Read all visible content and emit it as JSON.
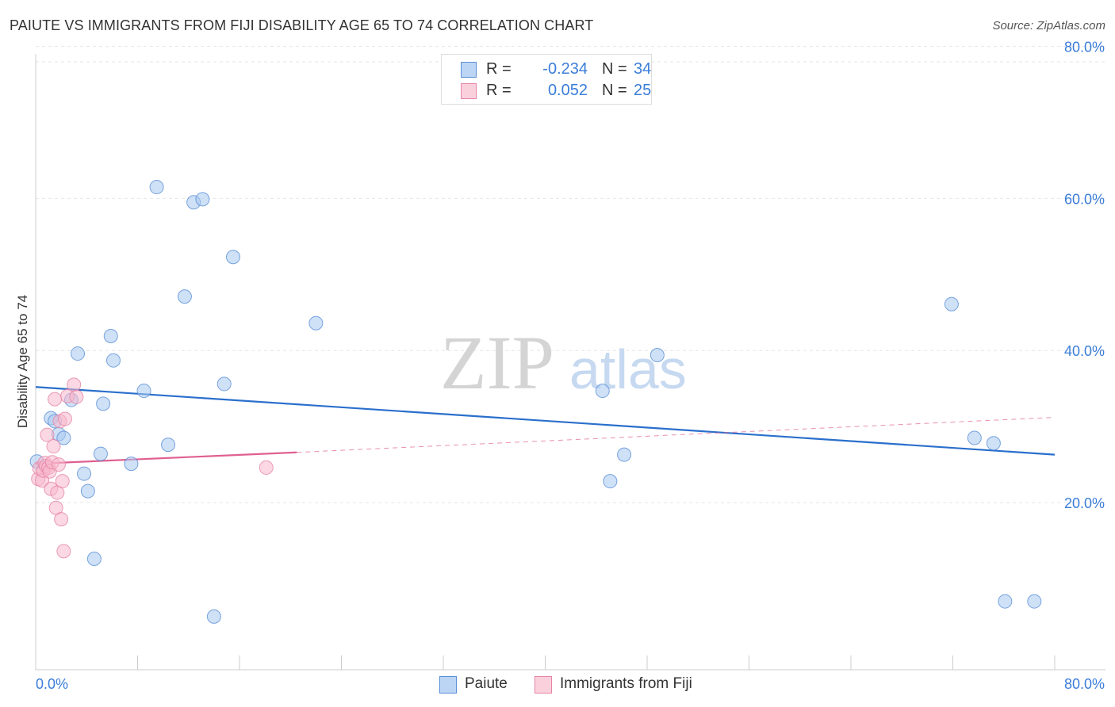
{
  "header": {
    "title": "PAIUTE VS IMMIGRANTS FROM FIJI DISABILITY AGE 65 TO 74 CORRELATION CHART",
    "source": "Source: ZipAtlas.com"
  },
  "legend": {
    "rows": [
      {
        "r_label": "R =",
        "r_value": "-0.234",
        "n_label": "N =",
        "n_value": "34"
      },
      {
        "r_label": "R =",
        "r_value": "0.052",
        "n_label": "N =",
        "n_value": "25"
      }
    ]
  },
  "bottom_legend": {
    "paiute": "Paiute",
    "fiji": "Immigrants from Fiji"
  },
  "watermark": {
    "zip": "ZIP",
    "atlas": "atlas"
  },
  "colors": {
    "paiute_fill": "#a8c8f0",
    "paiute_stroke": "#5a8fd6",
    "paiute_line": "#2a6fcc",
    "fiji_fill": "#f7b8cc",
    "fiji_stroke": "#e585a6",
    "fiji_line": "#e06090",
    "axis_text": "#3b7dd8"
  },
  "chart_data": {
    "type": "scatter",
    "title": "PAIUTE VS IMMIGRANTS FROM FIJI DISABILITY AGE 65 TO 74 CORRELATION CHART",
    "xlabel": "",
    "ylabel": "Disability Age 65 to 74",
    "xlim": [
      0,
      80
    ],
    "ylim": [
      0,
      80
    ],
    "x_tick_labels": [
      "0.0%",
      "80.0%"
    ],
    "y_tick_labels": [
      "20.0%",
      "40.0%",
      "60.0%",
      "80.0%"
    ],
    "y_ticks": [
      20,
      40,
      60,
      80
    ],
    "grid": true,
    "series": [
      {
        "name": "Paiute",
        "r": -0.234,
        "n": 34,
        "trend": {
          "x1": 0,
          "y1": 35.2,
          "x2": 80,
          "y2": 26.3,
          "dashed_to": null
        },
        "points": [
          [
            0.1,
            25.4
          ],
          [
            1.2,
            31.1
          ],
          [
            1.5,
            30.7
          ],
          [
            1.8,
            29.0
          ],
          [
            2.2,
            28.5
          ],
          [
            2.8,
            33.5
          ],
          [
            3.3,
            39.6
          ],
          [
            3.8,
            23.8
          ],
          [
            4.1,
            21.5
          ],
          [
            4.6,
            12.6
          ],
          [
            5.1,
            26.4
          ],
          [
            5.3,
            33.0
          ],
          [
            5.9,
            41.9
          ],
          [
            6.1,
            38.7
          ],
          [
            7.5,
            25.1
          ],
          [
            8.5,
            34.7
          ],
          [
            9.5,
            61.5
          ],
          [
            10.4,
            27.6
          ],
          [
            11.7,
            47.1
          ],
          [
            12.4,
            59.5
          ],
          [
            13.1,
            59.9
          ],
          [
            14.0,
            5.0
          ],
          [
            14.8,
            35.6
          ],
          [
            15.5,
            52.3
          ],
          [
            22.0,
            43.6
          ],
          [
            44.5,
            34.7
          ],
          [
            45.1,
            22.8
          ],
          [
            46.2,
            26.3
          ],
          [
            48.8,
            39.4
          ],
          [
            71.9,
            46.1
          ],
          [
            73.7,
            28.5
          ],
          [
            75.2,
            27.8
          ],
          [
            76.1,
            7.0
          ],
          [
            78.4,
            7.0
          ]
        ]
      },
      {
        "name": "Immigrants from Fiji",
        "r": 0.052,
        "n": 25,
        "trend": {
          "x1": 0,
          "y1": 25.1,
          "x2": 20.5,
          "y2": 26.6,
          "dashed_to": {
            "x": 80,
            "y": 31.2
          }
        },
        "points": [
          [
            0.2,
            23.1
          ],
          [
            0.3,
            24.5
          ],
          [
            0.5,
            22.9
          ],
          [
            0.6,
            24.2
          ],
          [
            0.7,
            25.2
          ],
          [
            0.8,
            24.8
          ],
          [
            0.9,
            28.9
          ],
          [
            1.0,
            24.6
          ],
          [
            1.1,
            24.1
          ],
          [
            1.2,
            21.8
          ],
          [
            1.3,
            25.3
          ],
          [
            1.4,
            27.4
          ],
          [
            1.5,
            33.6
          ],
          [
            1.6,
            19.3
          ],
          [
            1.7,
            21.3
          ],
          [
            1.8,
            25.0
          ],
          [
            1.9,
            30.7
          ],
          [
            2.0,
            17.8
          ],
          [
            2.1,
            22.8
          ],
          [
            2.2,
            13.6
          ],
          [
            2.3,
            31.0
          ],
          [
            2.5,
            34.0
          ],
          [
            3.0,
            35.5
          ],
          [
            3.2,
            33.9
          ],
          [
            18.1,
            24.6
          ]
        ]
      }
    ]
  }
}
